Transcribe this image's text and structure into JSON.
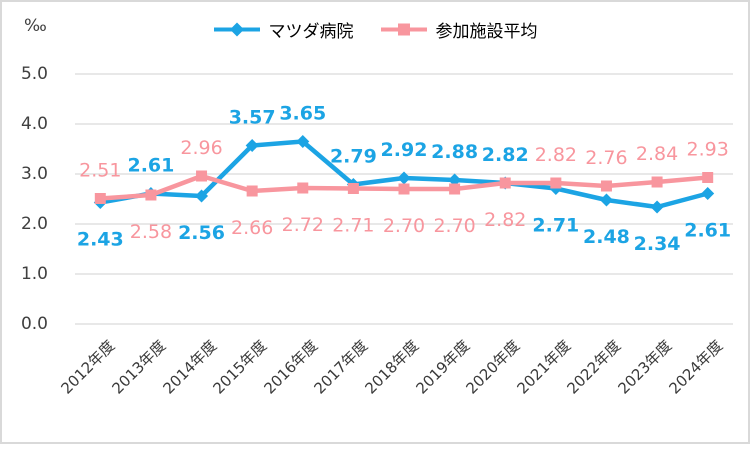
{
  "chart_data": {
    "type": "line",
    "title": "",
    "unit_label": "‰",
    "categories": [
      "2012年度",
      "2013年度",
      "2014年度",
      "2015年度",
      "2016年度",
      "2017年度",
      "2018年度",
      "2019年度",
      "2020年度",
      "2021年度",
      "2022年度",
      "2023年度",
      "2024年度"
    ],
    "series": [
      {
        "name": "マツダ病院",
        "color": "#1CA4E4",
        "marker": "diamond",
        "values": [
          2.43,
          2.61,
          2.56,
          3.57,
          3.65,
          2.79,
          2.92,
          2.88,
          2.82,
          2.71,
          2.48,
          2.34,
          2.61
        ],
        "label_sides": [
          "below",
          "above",
          "below",
          "above",
          "above",
          "above",
          "above",
          "above",
          "above",
          "below",
          "below",
          "below",
          "below"
        ],
        "labels_bold": true
      },
      {
        "name": "参加施設平均",
        "color": "#F8969E",
        "marker": "square",
        "values": [
          2.51,
          2.58,
          2.96,
          2.66,
          2.72,
          2.71,
          2.7,
          2.7,
          2.82,
          2.82,
          2.76,
          2.84,
          2.93
        ],
        "label_sides": [
          "above",
          "below",
          "above",
          "below",
          "below",
          "below",
          "below",
          "below",
          "below",
          "above",
          "above",
          "above",
          "above"
        ],
        "labels_bold": false
      }
    ],
    "ylim": [
      0,
      5
    ],
    "ytick_step": 1,
    "ytick_labels": [
      "0.0",
      "1.0",
      "2.0",
      "3.0",
      "4.0",
      "5.0"
    ],
    "grid": "horizontal",
    "legend_position": "top",
    "colors": {
      "gridline": "#D9D9D9",
      "axis_text": "#404040",
      "frame_border": "#D9D9D9"
    }
  }
}
